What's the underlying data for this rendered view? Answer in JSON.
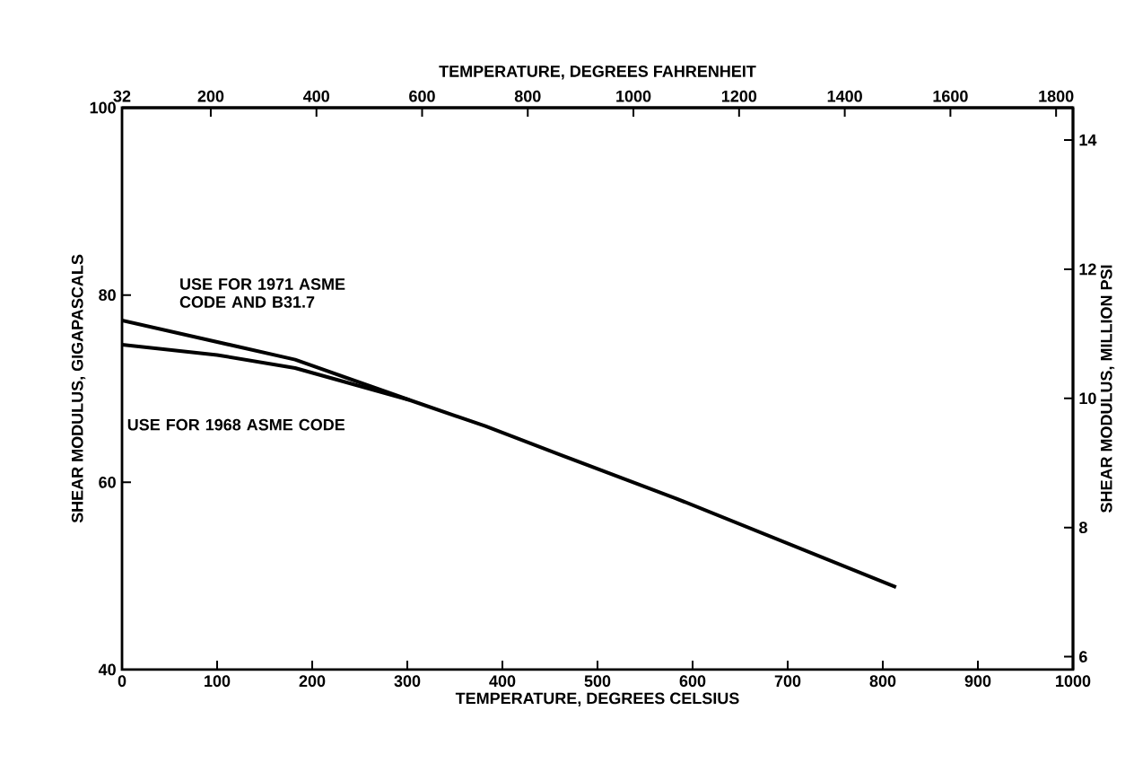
{
  "chart_data": {
    "type": "line",
    "xlabel": "TEMPERATURE, DEGREES CELSIUS",
    "ylabel": "SHEAR MODULUS, GIGAPASCALS",
    "x2label": "TEMPERATURE, DEGREES FAHRENHEIT",
    "y2label": "SHEAR MODULUS, MILLION PSI",
    "xlim": [
      0,
      1000
    ],
    "xticks": [
      0,
      100,
      200,
      300,
      400,
      500,
      600,
      700,
      800,
      900,
      1000
    ],
    "ylim": [
      40,
      100
    ],
    "yticks": [
      40,
      60,
      80,
      100
    ],
    "x2lim": [
      32,
      1832
    ],
    "x2ticks": [
      32,
      200,
      400,
      600,
      800,
      1000,
      1200,
      1400,
      1600,
      1800
    ],
    "y2lim": [
      5.8,
      14.5
    ],
    "y2ticks": [
      6,
      8,
      10,
      12,
      14
    ],
    "line_style": "solid",
    "marker": "none",
    "series": [
      {
        "name": "USE FOR 1971 ASME CODE AND B31.7",
        "color": "#000000",
        "x": [
          0,
          182,
          302,
          382,
          462,
          582,
          814
        ],
        "values": [
          77.3,
          73.1,
          68.8,
          66.0,
          62.9,
          58.3,
          48.8
        ]
      },
      {
        "name": "USE FOR 1968 ASME CODE",
        "color": "#000000",
        "x": [
          0,
          100,
          182,
          302
        ],
        "values": [
          74.7,
          73.6,
          72.2,
          68.8
        ]
      }
    ]
  }
}
